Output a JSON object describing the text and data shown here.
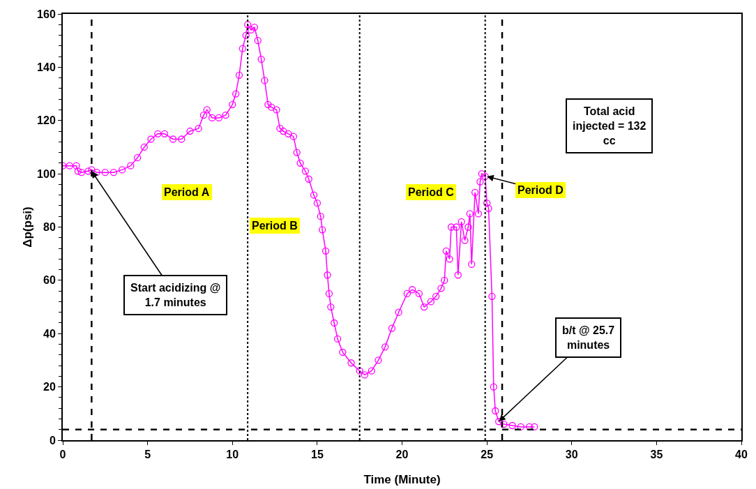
{
  "chart_data": {
    "type": "line",
    "xlabel": "Time (Minute)",
    "ylabel": "Δp(psi)",
    "xlim": [
      0,
      40
    ],
    "xticks": [
      0,
      5,
      10,
      15,
      20,
      25,
      30,
      35,
      40
    ],
    "ylim": [
      0,
      160
    ],
    "yticks": [
      0,
      20,
      40,
      60,
      80,
      100,
      120,
      140,
      160
    ],
    "grid": false,
    "marker": "circle",
    "line_style": "solid",
    "series": [
      {
        "color": "#ff00ff",
        "x": [
          0,
          0.4,
          0.8,
          0.9,
          1.1,
          1.5,
          1.7,
          2,
          2.5,
          3,
          3.5,
          4,
          4.4,
          4.8,
          5.2,
          5.6,
          6,
          6.5,
          7,
          7.5,
          8,
          8.3,
          8.5,
          8.8,
          9.2,
          9.6,
          10,
          10.2,
          10.4,
          10.6,
          10.8,
          10.9,
          11.1,
          11.3,
          11.5,
          11.7,
          11.9,
          12.1,
          12.3,
          12.6,
          12.8,
          13,
          13.3,
          13.6,
          13.8,
          14,
          14.3,
          14.5,
          14.8,
          15,
          15.2,
          15.3,
          15.5,
          15.6,
          15.7,
          15.8,
          16,
          16.2,
          16.5,
          17,
          17.5,
          17.8,
          18.2,
          18.6,
          19,
          19.4,
          19.8,
          20.3,
          20.6,
          21,
          21.3,
          21.7,
          22,
          22.3,
          22.5,
          22.6,
          22.8,
          22.9,
          23.2,
          23.3,
          23.5,
          23.7,
          23.9,
          24,
          24.1,
          24.3,
          24.5,
          24.6,
          24.7,
          24.9,
          25,
          25.1,
          25.3,
          25.4,
          25.5,
          25.7,
          26,
          26.5,
          27,
          27.5,
          27.8
        ],
        "values": [
          103,
          103,
          103,
          101,
          100.5,
          101,
          101.5,
          100.5,
          100.5,
          100.5,
          101.5,
          103,
          106,
          110,
          113,
          115,
          115,
          113,
          113,
          116,
          117,
          122,
          124,
          121,
          121,
          122,
          126,
          130,
          137,
          147,
          152,
          156,
          154,
          155,
          150,
          143,
          135,
          126,
          125,
          124,
          117,
          116,
          115,
          114,
          108,
          104,
          101,
          98,
          92,
          89,
          84,
          79,
          71,
          62,
          55,
          50,
          44,
          38,
          33,
          29,
          26,
          24.5,
          26,
          30,
          35,
          42,
          48,
          55,
          56.5,
          55,
          50,
          52,
          54,
          57,
          60,
          71,
          68,
          80,
          80,
          62,
          82,
          75,
          80,
          85,
          66,
          93,
          85,
          97,
          100,
          99,
          89,
          87,
          54,
          20,
          11,
          7,
          6,
          5.5,
          5,
          5,
          5
        ]
      }
    ],
    "ref_lines": [
      {
        "axis": "x",
        "value": 1.7,
        "line_style": "dashed",
        "color": "#000000"
      },
      {
        "axis": "x",
        "value": 10.9,
        "line_style": "dotted",
        "color": "#000000"
      },
      {
        "axis": "x",
        "value": 17.5,
        "line_style": "dotted",
        "color": "#000000"
      },
      {
        "axis": "x",
        "value": 24.9,
        "line_style": "dotted",
        "color": "#000000"
      },
      {
        "axis": "x",
        "value": 25.9,
        "line_style": "dashed",
        "color": "#000000"
      },
      {
        "axis": "y",
        "value": 4,
        "line_style": "dashed",
        "color": "#000000"
      }
    ],
    "annotations": [
      "Period A",
      "Period B",
      "Period C",
      {
        "text": "Period D",
        "x": 25,
        "y": 99
      },
      {
        "text": "Start acidizing @\n1.7 minutes",
        "x": 1.7,
        "y": 101
      },
      {
        "text": "b/t @ 25.7\nminutes",
        "x": 25.7,
        "y": 7
      },
      "Total acid\ninjected = 132\ncc"
    ]
  }
}
